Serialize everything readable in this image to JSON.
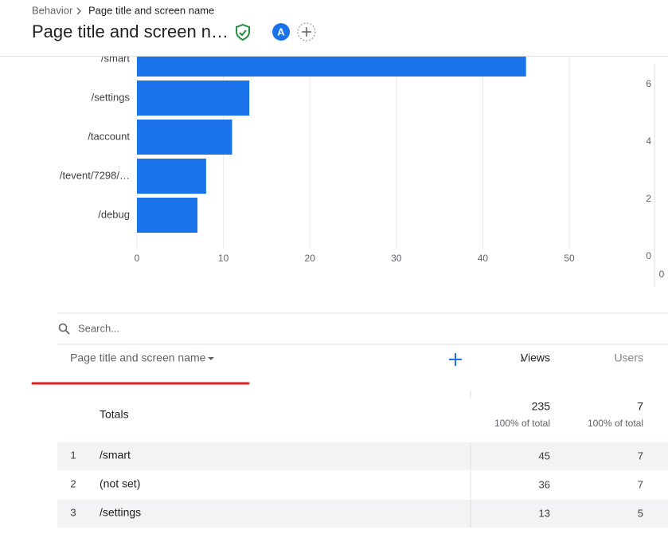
{
  "header": {
    "breadcrumb": [
      "Behavior",
      "Page title and screen name"
    ],
    "title": "Page title and screen n…",
    "avatar": "A"
  },
  "chart_data": [
    {
      "type": "bar",
      "orientation": "horizontal",
      "categories": [
        "/smart",
        "/settings",
        "/taccount",
        "/tevent/7298/…",
        "/debug"
      ],
      "values": [
        45,
        13,
        11,
        8,
        7
      ],
      "color": "#1a73e8",
      "xlim": [
        0,
        50
      ],
      "xticks": [
        0,
        10,
        20,
        30,
        40,
        50
      ],
      "grid": true
    },
    {
      "type": "line",
      "ylim": [
        0,
        6
      ],
      "yticks": [
        0,
        2,
        4,
        6
      ],
      "xticks": [
        0
      ]
    }
  ],
  "search": {
    "placeholder": "Search..."
  },
  "table": {
    "columns": [
      "Page title and screen name",
      "Views",
      "Users"
    ],
    "totals": {
      "label": "Totals",
      "views": 235,
      "views_note": "100% of total",
      "users": 7,
      "users_note": "100% of total"
    },
    "rows": [
      [
        1,
        "/smart",
        45,
        7
      ],
      [
        2,
        "(not set)",
        36,
        7
      ],
      [
        3,
        "/settings",
        13,
        5
      ]
    ]
  }
}
